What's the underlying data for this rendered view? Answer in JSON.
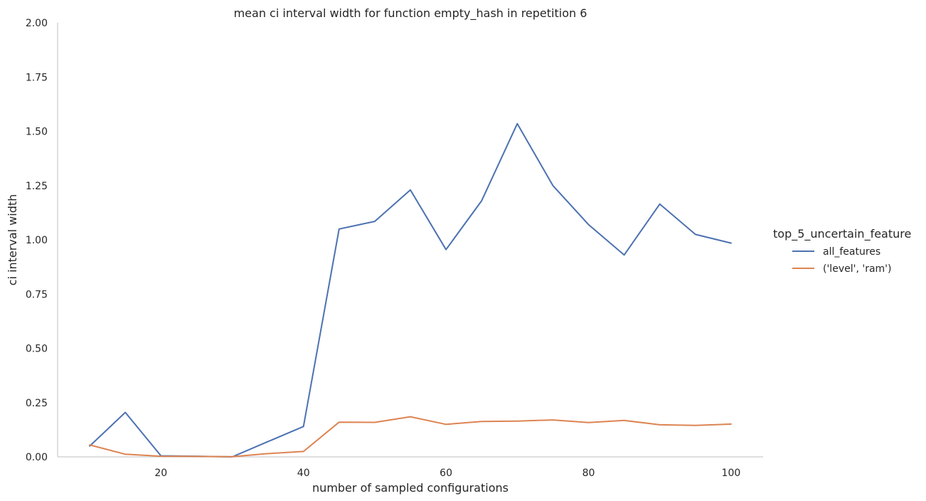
{
  "chart_data": {
    "type": "line",
    "title": "mean ci interval width for function empty_hash in repetition 6",
    "xlabel": "number of sampled configurations",
    "ylabel": "ci interval width",
    "xlim": [
      5.5,
      104.5
    ],
    "ylim": [
      0,
      2.0
    ],
    "xticks": [
      20,
      40,
      60,
      80,
      100
    ],
    "yticks": [
      0.0,
      0.25,
      0.5,
      0.75,
      1.0,
      1.25,
      1.5,
      1.75,
      2.0
    ],
    "ytick_labels": [
      "0.00",
      "0.25",
      "0.50",
      "0.75",
      "1.00",
      "1.25",
      "1.50",
      "1.75",
      "2.00"
    ],
    "grid": false,
    "legend": {
      "title": "top_5_uncertain_feature",
      "position": "right"
    },
    "x": [
      10,
      15,
      20,
      25,
      30,
      35,
      40,
      45,
      50,
      55,
      60,
      65,
      70,
      75,
      80,
      85,
      90,
      95,
      100
    ],
    "series": [
      {
        "name": "all_features",
        "color": "#4c72b0",
        "values": [
          0.05,
          0.205,
          0.005,
          0.003,
          0.0,
          0.07,
          0.14,
          1.05,
          1.085,
          1.23,
          0.955,
          1.18,
          1.535,
          1.25,
          1.07,
          0.93,
          1.165,
          1.025,
          0.985
        ]
      },
      {
        "name": "('level', 'ram')",
        "color": "#dd8452",
        "values": [
          0.055,
          0.012,
          0.003,
          0.002,
          0.001,
          0.015,
          0.025,
          0.16,
          0.159,
          0.185,
          0.15,
          0.163,
          0.165,
          0.17,
          0.158,
          0.168,
          0.148,
          0.145,
          0.151
        ]
      }
    ]
  }
}
